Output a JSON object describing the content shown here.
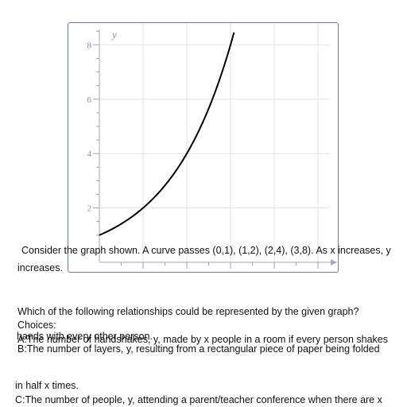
{
  "chart_data": {
    "type": "line",
    "xlabel": "",
    "ylabel": "y",
    "xlim": [
      0,
      5.5
    ],
    "ylim": [
      0,
      8.8
    ],
    "x_ticks": [
      1,
      2,
      3,
      4,
      5
    ],
    "y_ticks": [
      2,
      4,
      6,
      8
    ],
    "grid": true,
    "series": [
      {
        "function": "y = 2^x",
        "x": [
          0,
          1,
          2,
          3,
          3.1
        ],
        "y": [
          1,
          2,
          4,
          8,
          8.57
        ]
      }
    ],
    "curve_color": "#000000",
    "frame_color": "#6b7fa8"
  },
  "text": {
    "prompt_line_1": "Consider the graph shown. A curve passes (0,1), (1,2), (2,4), (3,8). As x increases, y",
    "prompt_line_2": "increases.",
    "question": "Which of the following relationships could be represented by the given graph?",
    "choices_label": "Choices:",
    "choice_a_overlap": "hands with every other person.",
    "choice_a": "A:The number of handshakes, y, made by x people in a room if every person shakes",
    "choice_b": "B:The number of layers, y, resulting from a rectangular piece of paper being folded",
    "choice_b_cont": "in half x times.",
    "choice_c": "C:The number of people, y, attending a parent/teacher conference when there are x"
  }
}
